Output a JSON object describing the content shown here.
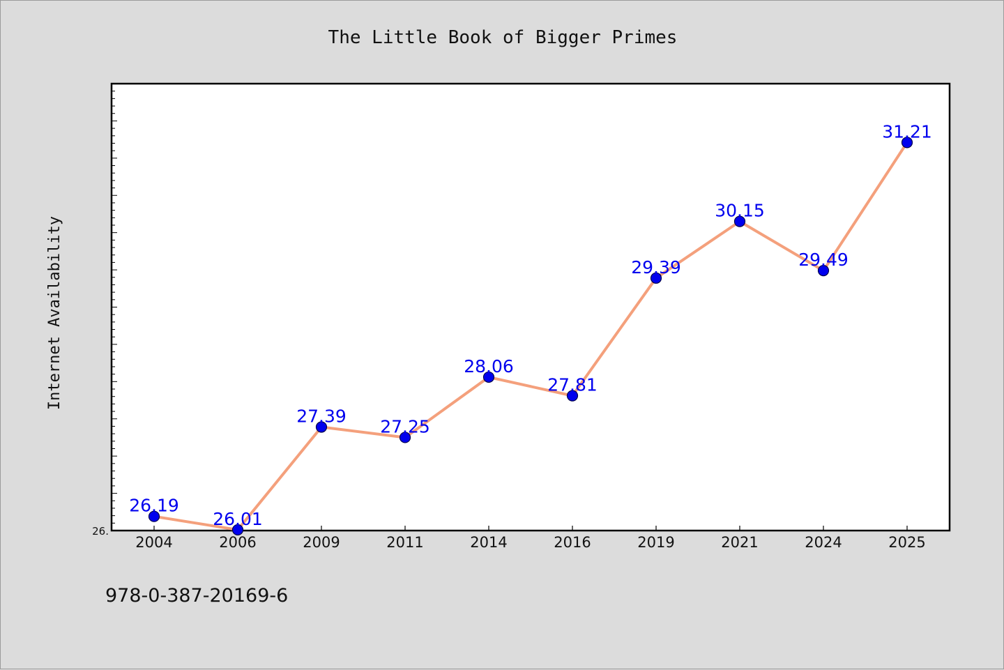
{
  "chart_data": {
    "type": "line",
    "title": "The Little Book of Bigger Primes",
    "ylabel": "Internet Availability",
    "xlabel": "",
    "categories": [
      "2004",
      "2006",
      "2009",
      "2011",
      "2014",
      "2016",
      "2019",
      "2021",
      "2024",
      "2025"
    ],
    "values": [
      26.19,
      26.01,
      27.39,
      27.25,
      28.06,
      27.81,
      29.39,
      30.15,
      29.49,
      31.21
    ],
    "ylim": [
      26.0,
      32.0
    ],
    "y_tick_label": "26.",
    "grid": false,
    "legend": "none",
    "line_color": "#f4a07c",
    "marker_color": "#0000ee",
    "label_color": "#0000ee"
  },
  "footer": {
    "isbn": "978-0-387-20169-6"
  }
}
